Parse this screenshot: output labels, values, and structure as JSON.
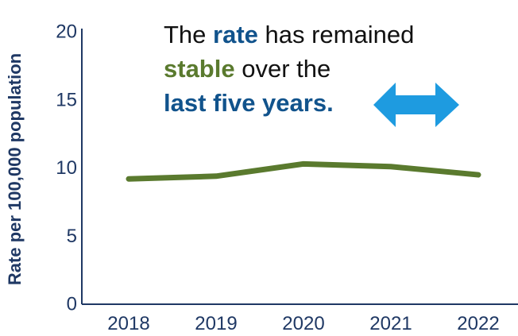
{
  "chart_data": {
    "type": "line",
    "x": [
      "2018",
      "2019",
      "2020",
      "2021",
      "2022"
    ],
    "series": [
      {
        "values": [
          9.2,
          9.4,
          10.3,
          10.1,
          9.5
        ]
      }
    ],
    "ylabel": "Rate per 100,000 population",
    "xlabel": "",
    "title": "",
    "ylim": [
      0,
      20
    ],
    "yticks": [
      "0",
      "5",
      "10",
      "15",
      "20"
    ],
    "grid": false,
    "colors": {
      "line": "#5a7a2e",
      "axis": "#1f3864",
      "tick_text": "#1f3864"
    }
  },
  "annotation": {
    "line1_a": "The ",
    "line1_b": "rate",
    "line1_c": " has remained",
    "line2_a": "stable",
    "line2_b": " over the",
    "line3": "last five years.",
    "colors": {
      "rate": "#11538c",
      "stable": "#5a7a2e",
      "last": "#11538c",
      "arrow": "#1e9be0"
    },
    "arrow_icon": "double-arrow-horizontal-icon"
  }
}
